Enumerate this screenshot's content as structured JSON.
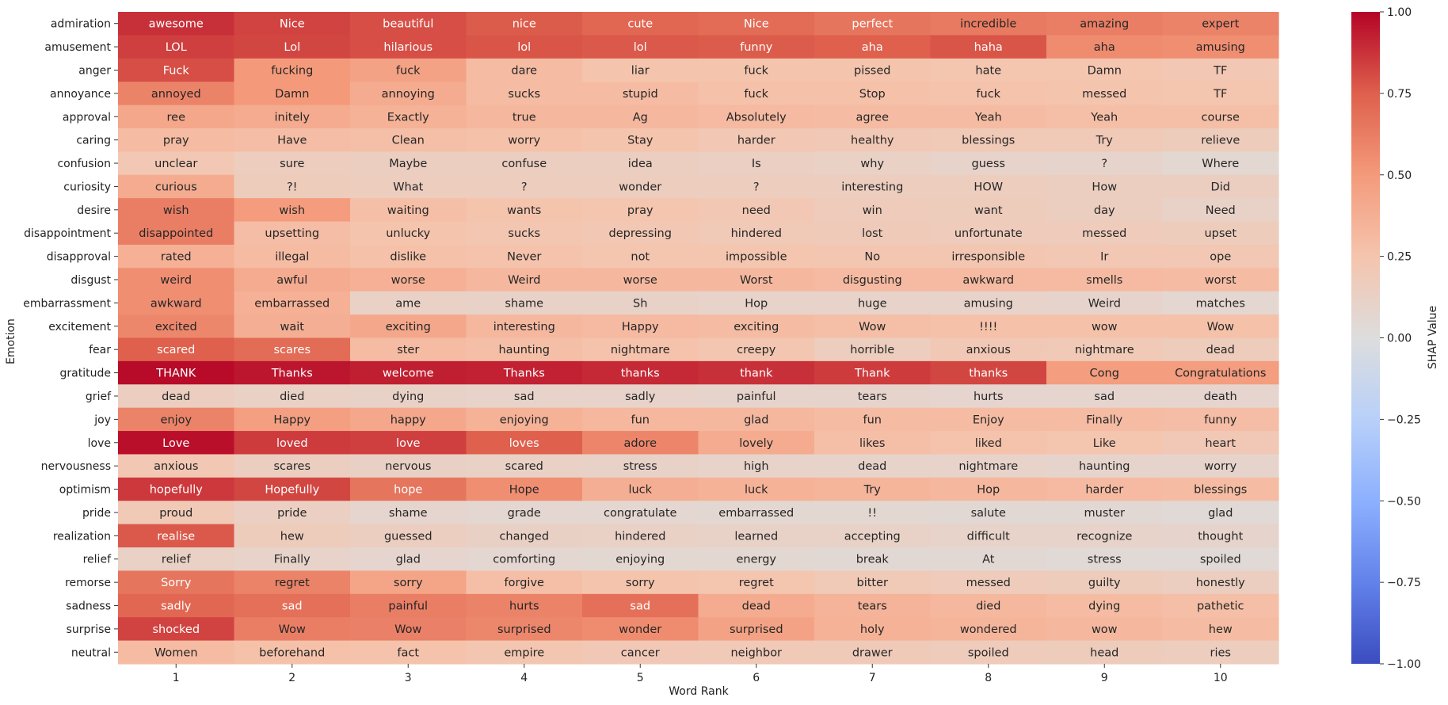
{
  "chart_data": {
    "type": "heatmap",
    "xlabel": "Word Rank",
    "ylabel": "Emotion",
    "colorbar_label": "SHAP Value",
    "colormap": "coolwarm",
    "vmin": -1.0,
    "vmax": 1.0,
    "colorbar_ticks": [
      1.0,
      0.75,
      0.5,
      0.25,
      0.0,
      -0.25,
      -0.5,
      -0.75,
      -1.0
    ],
    "colorbar_tick_labels": [
      "1.00",
      "0.75",
      "0.50",
      "0.25",
      "0.00",
      "−0.25",
      "−0.50",
      "−0.75",
      "−1.00"
    ],
    "columns": [
      "1",
      "2",
      "3",
      "4",
      "5",
      "6",
      "7",
      "8",
      "9",
      "10"
    ],
    "rows": [
      {
        "emotion": "admiration",
        "words": [
          "awesome",
          "Nice",
          "beautiful",
          "nice",
          "cute",
          "Nice",
          "perfect",
          "incredible",
          "amazing",
          "expert"
        ],
        "values": [
          0.88,
          0.83,
          0.8,
          0.76,
          0.72,
          0.7,
          0.66,
          0.64,
          0.62,
          0.6
        ]
      },
      {
        "emotion": "amusement",
        "words": [
          "LOL",
          "Lol",
          "hilarious",
          "lol",
          "lol",
          "funny",
          "aha",
          "haha",
          "aha",
          "amusing"
        ],
        "values": [
          0.84,
          0.82,
          0.8,
          0.78,
          0.77,
          0.76,
          0.75,
          0.78,
          0.56,
          0.55
        ]
      },
      {
        "emotion": "anger",
        "words": [
          "Fuck",
          "fucking",
          "fuck",
          "dare",
          "liar",
          "fuck",
          "pissed",
          "hate",
          "Damn",
          "TF"
        ],
        "values": [
          0.8,
          0.5,
          0.45,
          0.3,
          0.25,
          0.25,
          0.25,
          0.24,
          0.24,
          0.22
        ]
      },
      {
        "emotion": "annoyance",
        "words": [
          "annoyed",
          "Damn",
          "annoying",
          "sucks",
          "stupid",
          "fuck",
          "Stop",
          "fuck",
          "messed",
          "TF"
        ],
        "values": [
          0.6,
          0.5,
          0.4,
          0.3,
          0.3,
          0.27,
          0.27,
          0.26,
          0.25,
          0.24
        ]
      },
      {
        "emotion": "approval",
        "words": [
          "ree",
          "initely",
          "Exactly",
          "true",
          "Ag",
          "Absolutely",
          "agree",
          "Yeah",
          "Yeah",
          "course"
        ],
        "values": [
          0.42,
          0.4,
          0.36,
          0.33,
          0.32,
          0.31,
          0.3,
          0.3,
          0.28,
          0.28
        ]
      },
      {
        "emotion": "caring",
        "words": [
          "pray",
          "Have",
          "Clean",
          "worry",
          "Stay",
          "harder",
          "healthy",
          "blessings",
          "Try",
          "relieve"
        ],
        "values": [
          0.3,
          0.29,
          0.28,
          0.27,
          0.25,
          0.22,
          0.21,
          0.2,
          0.2,
          0.17
        ]
      },
      {
        "emotion": "confusion",
        "words": [
          "unclear",
          "sure",
          "Maybe",
          "confuse",
          "idea",
          "Is",
          "why",
          "guess",
          "?",
          "Where"
        ],
        "values": [
          0.22,
          0.16,
          0.15,
          0.15,
          0.15,
          0.14,
          0.12,
          0.1,
          0.09,
          0.06
        ]
      },
      {
        "emotion": "curiosity",
        "words": [
          "curious",
          "?!",
          "What",
          "?",
          "wonder",
          "?",
          "interesting",
          "HOW",
          "How",
          "Did"
        ],
        "values": [
          0.4,
          0.17,
          0.16,
          0.16,
          0.16,
          0.16,
          0.16,
          0.16,
          0.15,
          0.15
        ]
      },
      {
        "emotion": "desire",
        "words": [
          "wish",
          "wish",
          "waiting",
          "wants",
          "pray",
          "need",
          "win",
          "want",
          "day",
          "Need"
        ],
        "values": [
          0.62,
          0.49,
          0.28,
          0.25,
          0.24,
          0.22,
          0.18,
          0.17,
          0.15,
          0.11
        ]
      },
      {
        "emotion": "disappointment",
        "words": [
          "disappointed",
          "upsetting",
          "unlucky",
          "sucks",
          "depressing",
          "hindered",
          "lost",
          "unfortunate",
          "messed",
          "upset"
        ],
        "values": [
          0.62,
          0.29,
          0.25,
          0.23,
          0.22,
          0.2,
          0.19,
          0.18,
          0.18,
          0.17
        ]
      },
      {
        "emotion": "disapproval",
        "words": [
          "rated",
          "illegal",
          "dislike",
          "Never",
          "not",
          "impossible",
          "No",
          "irresponsible",
          "Ir",
          "ope"
        ],
        "values": [
          0.37,
          0.3,
          0.27,
          0.26,
          0.24,
          0.24,
          0.23,
          0.23,
          0.22,
          0.22
        ]
      },
      {
        "emotion": "disgust",
        "words": [
          "weird",
          "awful",
          "worse",
          "Weird",
          "worse",
          "Worst",
          "disgusting",
          "awkward",
          "smells",
          "worst"
        ],
        "values": [
          0.55,
          0.4,
          0.37,
          0.33,
          0.32,
          0.32,
          0.31,
          0.31,
          0.31,
          0.3
        ]
      },
      {
        "emotion": "embarrassment",
        "words": [
          "awkward",
          "embarrassed",
          "ame",
          "shame",
          "Sh",
          "Hop",
          "huge",
          "amusing",
          "Weird",
          "matches"
        ],
        "values": [
          0.55,
          0.37,
          0.12,
          0.11,
          0.11,
          0.1,
          0.1,
          0.1,
          0.09,
          0.07
        ]
      },
      {
        "emotion": "excitement",
        "words": [
          "excited",
          "wait",
          "exciting",
          "interesting",
          "Happy",
          "exciting",
          "Wow",
          "!!!!",
          "wow",
          "Wow"
        ],
        "values": [
          0.58,
          0.38,
          0.42,
          0.32,
          0.31,
          0.3,
          0.28,
          0.27,
          0.27,
          0.27
        ]
      },
      {
        "emotion": "fear",
        "words": [
          "scared",
          "scares",
          "ster",
          "haunting",
          "nightmare",
          "creepy",
          "horrible",
          "anxious",
          "nightmare",
          "dead"
        ],
        "values": [
          0.75,
          0.7,
          0.3,
          0.28,
          0.26,
          0.23,
          0.16,
          0.21,
          0.2,
          0.17
        ]
      },
      {
        "emotion": "gratitude",
        "words": [
          "THANK",
          "Thanks",
          "welcome",
          "Thanks",
          "thanks",
          "thank",
          "Thank",
          "thanks",
          "Cong",
          "Congratulations"
        ],
        "values": [
          0.98,
          0.95,
          0.93,
          0.92,
          0.9,
          0.88,
          0.85,
          0.82,
          0.48,
          0.48
        ]
      },
      {
        "emotion": "grief",
        "words": [
          "dead",
          "died",
          "dying",
          "sad",
          "sadly",
          "painful",
          "tears",
          "hurts",
          "sad",
          "death"
        ],
        "values": [
          0.15,
          0.12,
          0.11,
          0.1,
          0.1,
          0.09,
          0.09,
          0.08,
          0.08,
          0.08
        ]
      },
      {
        "emotion": "joy",
        "words": [
          "enjoy",
          "Happy",
          "happy",
          "enjoying",
          "fun",
          "glad",
          "fun",
          "Enjoy",
          "Finally",
          "funny"
        ],
        "values": [
          0.6,
          0.47,
          0.42,
          0.36,
          0.33,
          0.32,
          0.3,
          0.3,
          0.3,
          0.29
        ]
      },
      {
        "emotion": "love",
        "words": [
          "Love",
          "loved",
          "love",
          "loves",
          "adore",
          "lovely",
          "likes",
          "liked",
          "Like",
          "heart"
        ],
        "values": [
          0.97,
          0.85,
          0.84,
          0.75,
          0.59,
          0.4,
          0.28,
          0.26,
          0.24,
          0.21
        ]
      },
      {
        "emotion": "nervousness",
        "words": [
          "anxious",
          "scares",
          "nervous",
          "scared",
          "stress",
          "high",
          "dead",
          "nightmare",
          "haunting",
          "worry"
        ],
        "values": [
          0.22,
          0.15,
          0.13,
          0.12,
          0.11,
          0.1,
          0.1,
          0.1,
          0.09,
          0.09
        ]
      },
      {
        "emotion": "optimism",
        "words": [
          "hopefully",
          "Hopefully",
          "hope",
          "Hope",
          "luck",
          "luck",
          "Try",
          "Hop",
          "harder",
          "blessings"
        ],
        "values": [
          0.86,
          0.82,
          0.66,
          0.55,
          0.38,
          0.36,
          0.34,
          0.33,
          0.31,
          0.3
        ]
      },
      {
        "emotion": "pride",
        "words": [
          "proud",
          "pride",
          "shame",
          "grade",
          "congratulate",
          "embarrassed",
          "!!",
          "salute",
          "muster",
          "glad"
        ],
        "values": [
          0.2,
          0.14,
          0.08,
          0.07,
          0.07,
          0.06,
          0.06,
          0.05,
          0.05,
          0.04
        ]
      },
      {
        "emotion": "realization",
        "words": [
          "realise",
          "hew",
          "guessed",
          "changed",
          "hindered",
          "learned",
          "accepting",
          "difficult",
          "recognize",
          "thought"
        ],
        "values": [
          0.77,
          0.17,
          0.15,
          0.13,
          0.12,
          0.11,
          0.11,
          0.1,
          0.1,
          0.09
        ]
      },
      {
        "emotion": "relief",
        "words": [
          "relief",
          "Finally",
          "glad",
          "comforting",
          "enjoying",
          "energy",
          "break",
          "At",
          "stress",
          "spoiled"
        ],
        "values": [
          0.12,
          0.1,
          0.08,
          0.07,
          0.06,
          0.06,
          0.05,
          0.05,
          0.04,
          0.04
        ]
      },
      {
        "emotion": "remorse",
        "words": [
          "Sorry",
          "regret",
          "sorry",
          "forgive",
          "sorry",
          "regret",
          "bitter",
          "messed",
          "guilty",
          "honestly"
        ],
        "values": [
          0.66,
          0.6,
          0.44,
          0.28,
          0.25,
          0.24,
          0.2,
          0.18,
          0.17,
          0.15
        ]
      },
      {
        "emotion": "sadness",
        "words": [
          "sadly",
          "sad",
          "painful",
          "hurts",
          "sad",
          "dead",
          "tears",
          "died",
          "dying",
          "pathetic"
        ],
        "values": [
          0.72,
          0.68,
          0.62,
          0.6,
          0.68,
          0.4,
          0.35,
          0.32,
          0.3,
          0.28
        ]
      },
      {
        "emotion": "surprise",
        "words": [
          "shocked",
          "Wow",
          "Wow",
          "surprised",
          "wonder",
          "surprised",
          "holy",
          "wondered",
          "wow",
          "hew"
        ],
        "values": [
          0.83,
          0.62,
          0.61,
          0.58,
          0.56,
          0.45,
          0.36,
          0.34,
          0.32,
          0.3
        ]
      },
      {
        "emotion": "neutral",
        "words": [
          "Women",
          "beforehand",
          "fact",
          "empire",
          "cancer",
          "neighbor",
          "drawer",
          "spoiled",
          "head",
          "ries"
        ],
        "values": [
          0.3,
          0.27,
          0.26,
          0.23,
          0.21,
          0.2,
          0.19,
          0.18,
          0.17,
          0.16
        ]
      }
    ]
  }
}
